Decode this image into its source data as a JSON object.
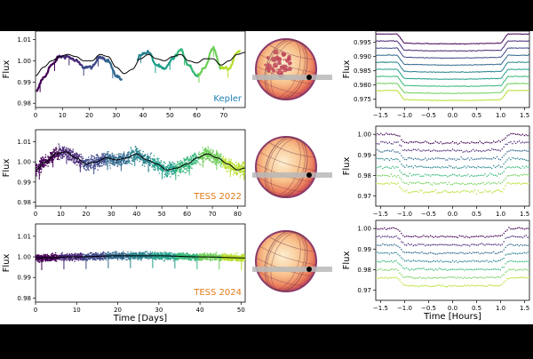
{
  "chart_data": [
    {
      "type": "line",
      "title": "",
      "label": "Kepler",
      "label_color": "#1f7fb3",
      "xlabel": "",
      "ylabel": "Flux",
      "xlim": [
        0,
        78
      ],
      "ylim": [
        0.978,
        1.014
      ],
      "xticks": [
        0,
        10,
        20,
        30,
        40,
        50,
        60,
        70
      ],
      "yticks": [
        0.98,
        0.99,
        1.0,
        1.01
      ],
      "ytick_labels": [
        "0.98",
        "0.99",
        "1.00",
        "1.01"
      ],
      "segments": [
        [
          0.5,
          32
        ],
        [
          38,
          76
        ]
      ],
      "model": {
        "x": [
          0,
          3,
          6,
          9,
          12,
          15,
          18,
          21,
          24,
          27,
          30,
          33,
          36,
          39,
          42,
          45,
          48,
          51,
          54,
          57,
          60,
          63,
          66,
          69,
          72,
          75,
          78
        ],
        "y": [
          0.993,
          0.997,
          1.0,
          1.002,
          1.003,
          1.002,
          1.0,
          1.0,
          1.003,
          1.002,
          0.997,
          0.994,
          0.996,
          1.001,
          1.003,
          1.001,
          1.0,
          1.002,
          1.003,
          1.0,
          0.999,
          1.001,
          1.001,
          0.998,
          1.0,
          1.003,
          1.004
        ]
      },
      "data": {
        "x": [
          0,
          3,
          6,
          9,
          12,
          15,
          18,
          21,
          24,
          27,
          30,
          33,
          36,
          39,
          42,
          45,
          48,
          51,
          54,
          57,
          60,
          63,
          66,
          69,
          72,
          75,
          78
        ],
        "y": [
          0.985,
          0.992,
          0.998,
          1.002,
          1.002,
          1.0,
          0.997,
          0.997,
          1.002,
          1.0,
          0.993,
          0.99,
          0.993,
          1.003,
          1.004,
          0.998,
          0.996,
          1.001,
          1.005,
          0.998,
          0.993,
          0.997,
          1.006,
          0.997,
          0.996,
          1.004,
          1.006
        ]
      }
    },
    {
      "type": "scatter",
      "title": "",
      "label": "TESS 2022",
      "label_color": "#e07b1a",
      "xlabel": "",
      "ylabel": "Flux",
      "xlim": [
        0,
        83
      ],
      "ylim": [
        0.978,
        1.016
      ],
      "xticks": [
        0,
        10,
        20,
        30,
        40,
        50,
        60,
        70,
        80
      ],
      "yticks": [
        0.98,
        0.99,
        1.0,
        1.01
      ],
      "ytick_labels": [
        "0.98",
        "0.99",
        "1.00",
        "1.01"
      ],
      "model": {
        "x": [
          0,
          4,
          8,
          12,
          16,
          20,
          24,
          28,
          32,
          36,
          40,
          44,
          48,
          52,
          56,
          60,
          64,
          68,
          72,
          76,
          80,
          83
        ],
        "y": [
          0.996,
          1.0,
          1.004,
          1.005,
          1.002,
          0.999,
          1.0,
          1.002,
          1.001,
          1.002,
          1.004,
          1.001,
          0.999,
          0.996,
          0.997,
          0.999,
          1.002,
          1.004,
          1.002,
          0.999,
          0.996,
          0.997
        ]
      }
    },
    {
      "type": "scatter",
      "title": "",
      "label": "TESS 2024",
      "label_color": "#e07b1a",
      "xlabel": "Time [Days]",
      "ylabel": "Flux",
      "xlim": [
        0,
        51
      ],
      "ylim": [
        0.978,
        1.016
      ],
      "xticks": [
        0,
        10,
        20,
        30,
        40,
        50
      ],
      "yticks": [
        0.98,
        0.99,
        1.0,
        1.01
      ],
      "ytick_labels": [
        "0.98",
        "0.99",
        "1.00",
        "1.01"
      ],
      "model": {
        "x": [
          0,
          10,
          20,
          30,
          40,
          51
        ],
        "y": [
          0.9995,
          1.0,
          1.0005,
          1.0005,
          1.0,
          0.9995
        ]
      }
    },
    {
      "type": "line",
      "title": "",
      "xlabel": "",
      "ylabel": "Flux",
      "xlim": [
        -1.6,
        1.6
      ],
      "ylim": [
        0.972,
        0.999
      ],
      "xticks": [
        -1.5,
        -1.0,
        -0.5,
        0.0,
        0.5,
        1.0,
        1.5
      ],
      "xtick_labels": [
        "−1.5",
        "−1.0",
        "−0.5",
        "0.0",
        "0.5",
        "1.0",
        "1.5"
      ],
      "yticks": [
        0.975,
        0.98,
        0.985,
        0.99,
        0.995
      ],
      "ytick_labels": [
        "0.975",
        "0.980",
        "0.985",
        "0.990",
        "0.995"
      ],
      "offsets": [
        0.998,
        0.9955,
        0.993,
        0.9905,
        0.988,
        0.9855,
        0.983,
        0.9805,
        0.978
      ],
      "transit_depth": 0.0035,
      "ingress": [
        -1.15,
        -1.0
      ],
      "egress": [
        1.0,
        1.15
      ]
    },
    {
      "type": "scatter",
      "title": "",
      "xlabel": "",
      "ylabel": "Flux",
      "xlim": [
        -1.6,
        1.6
      ],
      "ylim": [
        0.965,
        1.004
      ],
      "xticks": [
        -1.5,
        -1.0,
        -0.5,
        0.0,
        0.5,
        1.0,
        1.5
      ],
      "xtick_labels": [
        "−1.5",
        "−1.0",
        "−0.5",
        "0.0",
        "0.5",
        "1.0",
        "1.5"
      ],
      "yticks": [
        0.97,
        0.98,
        0.99,
        1.0
      ],
      "ytick_labels": [
        "0.97",
        "0.98",
        "0.99",
        "1.00"
      ],
      "offsets": [
        1.0,
        0.996,
        0.992,
        0.988,
        0.984,
        0.98,
        0.976
      ],
      "transit_depth": 0.004,
      "ingress": [
        -1.15,
        -1.0
      ],
      "egress": [
        1.0,
        1.15
      ]
    },
    {
      "type": "scatter",
      "title": "",
      "xlabel": "Time [Hours]",
      "ylabel": "Flux",
      "xlim": [
        -1.6,
        1.6
      ],
      "ylim": [
        0.965,
        1.004
      ],
      "xticks": [
        -1.5,
        -1.0,
        -0.5,
        0.0,
        0.5,
        1.0,
        1.5
      ],
      "xtick_labels": [
        "−1.5",
        "−1.0",
        "−0.5",
        "0.0",
        "0.5",
        "1.0",
        "1.5"
      ],
      "yticks": [
        0.97,
        0.98,
        0.99,
        1.0
      ],
      "ytick_labels": [
        "0.97",
        "0.98",
        "0.99",
        "1.00"
      ],
      "offsets": [
        1.0,
        0.996,
        0.992,
        0.988,
        0.984,
        0.98,
        0.976
      ],
      "transit_depth": 0.004,
      "ingress": [
        -1.15,
        -1.0
      ],
      "egress": [
        1.0,
        1.15
      ]
    }
  ],
  "colors": {
    "palette": [
      "#440154",
      "#482878",
      "#3e4989",
      "#31688e",
      "#26828e",
      "#1f9e89",
      "#35b779",
      "#6ece58",
      "#b5de2b",
      "#fde725"
    ],
    "model": "#000000",
    "star_edge": "#8a3a6a",
    "star_center": "#fbe6c0",
    "star_limb": "#e45c50",
    "track": "#b9b9b9",
    "planet": "#000000",
    "spot": "#c0485a"
  },
  "stars": [
    {
      "name": "kepler-star",
      "spotted": true
    },
    {
      "name": "tess2022-star",
      "spotted": false
    },
    {
      "name": "tess2024-star",
      "spotted": false
    }
  ]
}
